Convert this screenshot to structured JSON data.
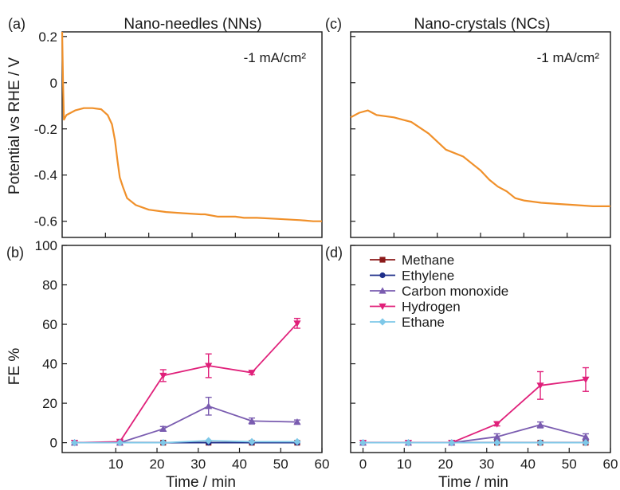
{
  "colors": {
    "potential": "#f0902a",
    "methane": "#8b1a1a",
    "ethylene": "#1f2f8a",
    "carbon_monoxide": "#7a5cb0",
    "hydrogen": "#e0207a",
    "ethane": "#7ec8e8",
    "axis": "#1a1a1a"
  },
  "panels": {
    "a": {
      "tag": "(a)",
      "title": "Nano-needles (NNs)",
      "annotation": "-1 mA/cm²"
    },
    "c": {
      "tag": "(c)",
      "title": "Nano-crystals (NCs)",
      "annotation": "-1 mA/cm²"
    },
    "b": {
      "tag": "(b)"
    },
    "d": {
      "tag": "(d)"
    }
  },
  "axes": {
    "top_ylabel": "Potential vs RHE / V",
    "bottom_ylabel": "FE %",
    "xlabel": "Time / min",
    "top_yticks": [
      "0.2",
      "0",
      "-0.2",
      "-0.4",
      "-0.6"
    ],
    "bottom_yticks": [
      "100",
      "80",
      "60",
      "40",
      "20",
      "0"
    ],
    "xticks": [
      "10",
      "20",
      "30",
      "40",
      "50",
      "60"
    ],
    "xticks_d": [
      "0",
      "10",
      "20",
      "30",
      "40",
      "50",
      "60"
    ]
  },
  "legend": [
    "Methane",
    "Ethylene",
    "Carbon monoxide",
    "Hydrogen",
    "Ethane"
  ],
  "chart_data": [
    {
      "panel": "a",
      "type": "line",
      "xlim": [
        0,
        60
      ],
      "ylim": [
        -0.67,
        0.22
      ],
      "series": [
        {
          "color_key": "potential",
          "x": [
            0,
            0.2,
            0.4,
            1,
            3,
            5,
            7,
            9,
            10.5,
            11.5,
            12.2,
            12.8,
            13.3,
            14,
            15,
            17,
            20,
            24,
            28,
            32,
            33,
            36,
            40,
            42,
            45,
            50,
            55,
            58,
            60
          ],
          "y": [
            0.22,
            0.0,
            -0.16,
            -0.14,
            -0.12,
            -0.11,
            -0.11,
            -0.115,
            -0.14,
            -0.18,
            -0.25,
            -0.34,
            -0.41,
            -0.45,
            -0.5,
            -0.53,
            -0.55,
            -0.56,
            -0.565,
            -0.57,
            -0.57,
            -0.58,
            -0.58,
            -0.585,
            -0.585,
            -0.59,
            -0.595,
            -0.6,
            -0.6
          ]
        }
      ]
    },
    {
      "panel": "c",
      "type": "line",
      "xlim": [
        0,
        60
      ],
      "ylim": [
        -0.67,
        0.22
      ],
      "series": [
        {
          "color_key": "potential",
          "x": [
            0,
            2,
            4,
            6,
            10,
            14,
            18,
            22,
            26,
            28,
            30,
            32,
            34,
            36,
            38,
            40,
            44,
            48,
            52,
            56,
            60
          ],
          "y": [
            -0.15,
            -0.13,
            -0.12,
            -0.14,
            -0.15,
            -0.17,
            -0.22,
            -0.29,
            -0.32,
            -0.35,
            -0.38,
            -0.42,
            -0.45,
            -0.47,
            -0.5,
            -0.51,
            -0.52,
            -0.525,
            -0.53,
            -0.535,
            -0.535
          ]
        }
      ]
    },
    {
      "panel": "b",
      "type": "line",
      "x": [
        0,
        11,
        21.5,
        32.5,
        43,
        54
      ],
      "xlim": [
        -3,
        60
      ],
      "ylim": [
        -5,
        100
      ],
      "series": [
        {
          "name": "Methane",
          "color_key": "methane",
          "values": [
            0,
            0,
            0,
            0,
            0,
            0
          ],
          "errors": [
            0,
            0,
            0,
            0,
            0,
            0
          ]
        },
        {
          "name": "Ethylene",
          "color_key": "ethylene",
          "values": [
            0,
            0,
            0,
            0,
            0,
            0
          ],
          "errors": [
            0,
            0,
            0,
            0,
            0,
            0
          ]
        },
        {
          "name": "Carbon monoxide",
          "color_key": "carbon_monoxide",
          "values": [
            0,
            0,
            7,
            18.5,
            11,
            10.5
          ],
          "errors": [
            0,
            0,
            1.2,
            4.5,
            1.5,
            1
          ]
        },
        {
          "name": "Hydrogen",
          "color_key": "hydrogen",
          "values": [
            0,
            0.5,
            34,
            39,
            35.5,
            60.5
          ],
          "errors": [
            0,
            0.5,
            3,
            6,
            1,
            2.5
          ]
        },
        {
          "name": "Ethane",
          "color_key": "ethane",
          "values": [
            0,
            0,
            0,
            1,
            0.5,
            0.5
          ],
          "errors": [
            0,
            0,
            0,
            0,
            0,
            0
          ]
        }
      ]
    },
    {
      "panel": "d",
      "type": "line",
      "x": [
        0,
        11,
        21.5,
        32.5,
        43,
        54
      ],
      "xlim": [
        -3,
        60
      ],
      "ylim": [
        -5,
        100
      ],
      "series": [
        {
          "name": "Methane",
          "color_key": "methane",
          "values": [
            0,
            0,
            0,
            0,
            0,
            0
          ],
          "errors": [
            0,
            0,
            0,
            0,
            0,
            0
          ]
        },
        {
          "name": "Ethylene",
          "color_key": "ethylene",
          "values": [
            0,
            0,
            0,
            0,
            0,
            0
          ],
          "errors": [
            0,
            0,
            0,
            0,
            0,
            0
          ]
        },
        {
          "name": "Carbon monoxide",
          "color_key": "carbon_monoxide",
          "values": [
            0,
            0,
            0,
            3,
            9,
            3
          ],
          "errors": [
            0,
            0,
            0,
            1.5,
            1.5,
            1.5
          ]
        },
        {
          "name": "Hydrogen",
          "color_key": "hydrogen",
          "values": [
            0,
            0,
            0,
            9.5,
            29,
            32
          ],
          "errors": [
            0,
            0,
            0,
            1,
            7,
            6
          ]
        },
        {
          "name": "Ethane",
          "color_key": "ethane",
          "values": [
            0,
            0,
            0,
            0,
            0,
            0
          ],
          "errors": [
            0,
            0,
            0,
            0,
            0,
            0
          ]
        }
      ]
    }
  ]
}
